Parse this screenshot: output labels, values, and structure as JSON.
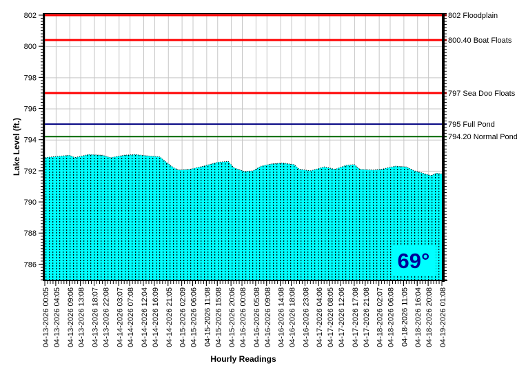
{
  "temperature_badge": {
    "text": "69°",
    "color": "#000099",
    "background": "#00FFFF"
  },
  "chart_data": {
    "type": "area",
    "title": "",
    "xlabel": "Hourly Readings",
    "ylabel": "Lake Level (ft.)",
    "ylim": [
      785,
      802
    ],
    "y_major_ticks": [
      786,
      788,
      790,
      792,
      794,
      796,
      798,
      800,
      802
    ],
    "y_minor_step": 0.2,
    "x_total_hours": 145,
    "x_minor_step_hours": 1,
    "grid": true,
    "grid_color": "#C6C6C6",
    "axis_color": "#000000",
    "x_tick_labels": [
      {
        "hour": 0,
        "label": "04-13-2026 00:05"
      },
      {
        "hour": 4,
        "label": "04-13-2026 04:05"
      },
      {
        "hour": 9,
        "label": "04-13-2026 09:06"
      },
      {
        "hour": 13,
        "label": "04-13-2026 13:08"
      },
      {
        "hour": 18,
        "label": "04-13-2026 18:07"
      },
      {
        "hour": 22,
        "label": "04-13-2026 22:08"
      },
      {
        "hour": 27,
        "label": "04-14-2026 03:07"
      },
      {
        "hour": 31,
        "label": "04-14-2026 07:08"
      },
      {
        "hour": 36,
        "label": "04-14-2026 12:04"
      },
      {
        "hour": 40,
        "label": "04-14-2026 16:09"
      },
      {
        "hour": 45,
        "label": "04-14-2026 21:05"
      },
      {
        "hour": 50,
        "label": "04-15-2026 02:09"
      },
      {
        "hour": 54,
        "label": "04-15-2026 06:06"
      },
      {
        "hour": 59,
        "label": "04-15-2026 11:08"
      },
      {
        "hour": 63,
        "label": "04-15-2026 15:08"
      },
      {
        "hour": 68,
        "label": "04-15-2026 20:06"
      },
      {
        "hour": 72,
        "label": "04-16-2026 00:08"
      },
      {
        "hour": 77,
        "label": "04-16-2026 05:08"
      },
      {
        "hour": 81,
        "label": "04-16-2026 09:08"
      },
      {
        "hour": 86,
        "label": "04-16-2026 14:08"
      },
      {
        "hour": 90,
        "label": "04-16-2026 18:08"
      },
      {
        "hour": 95,
        "label": "04-16-2026 23:08"
      },
      {
        "hour": 100,
        "label": "04-17-2026 04:06"
      },
      {
        "hour": 104,
        "label": "04-17-2026 08:05"
      },
      {
        "hour": 108,
        "label": "04-17-2026 12:06"
      },
      {
        "hour": 113,
        "label": "04-17-2026 17:08"
      },
      {
        "hour": 117,
        "label": "04-17-2026 21:08"
      },
      {
        "hour": 122,
        "label": "04-18-2026 02:07"
      },
      {
        "hour": 126,
        "label": "04-18-2026 06:08"
      },
      {
        "hour": 131,
        "label": "04-18-2026 11:05"
      },
      {
        "hour": 136,
        "label": "04-18-2026 16:04"
      },
      {
        "hour": 140,
        "label": "04-18-2026 20:08"
      },
      {
        "hour": 145,
        "label": "04-19-2026 01:08"
      }
    ],
    "series": {
      "name": "Lake Level",
      "fill_color": "#00FFFF",
      "pattern_dot_color": "#000000",
      "edge_color": "#000000",
      "points": [
        [
          0,
          792.85
        ],
        [
          3,
          792.9
        ],
        [
          9,
          793.0
        ],
        [
          11,
          792.85
        ],
        [
          16,
          793.05
        ],
        [
          21,
          793.0
        ],
        [
          24,
          792.85
        ],
        [
          29,
          793.0
        ],
        [
          33,
          793.05
        ],
        [
          38,
          792.95
        ],
        [
          42,
          792.9
        ],
        [
          44,
          792.6
        ],
        [
          47,
          792.2
        ],
        [
          49,
          792.05
        ],
        [
          53,
          792.1
        ],
        [
          58,
          792.3
        ],
        [
          63,
          792.55
        ],
        [
          67,
          792.6
        ],
        [
          69,
          792.2
        ],
        [
          73,
          791.95
        ],
        [
          76,
          792.0
        ],
        [
          79,
          792.3
        ],
        [
          83,
          792.45
        ],
        [
          87,
          792.5
        ],
        [
          91,
          792.4
        ],
        [
          93,
          792.1
        ],
        [
          97,
          792.0
        ],
        [
          102,
          792.25
        ],
        [
          106,
          792.1
        ],
        [
          110,
          792.35
        ],
        [
          113,
          792.4
        ],
        [
          115,
          792.1
        ],
        [
          120,
          792.05
        ],
        [
          123,
          792.1
        ],
        [
          128,
          792.3
        ],
        [
          132,
          792.25
        ],
        [
          135,
          792.0
        ],
        [
          138,
          791.85
        ],
        [
          141,
          791.7
        ],
        [
          143,
          791.85
        ],
        [
          145,
          791.8
        ]
      ]
    },
    "reference_lines": [
      {
        "value": 802,
        "label": "802 Floodplain",
        "color": "#FF0000",
        "width": 3
      },
      {
        "value": 800.4,
        "label": "800.40 Boat Floats",
        "color": "#FF0000",
        "width": 3
      },
      {
        "value": 797,
        "label": "797 Sea Doo Floats",
        "color": "#FF0000",
        "width": 3
      },
      {
        "value": 795,
        "label": "795 Full Pond",
        "color": "#000080",
        "width": 2
      },
      {
        "value": 794.2,
        "label": "794.20 Normal Pond",
        "color": "#006600",
        "width": 2
      }
    ]
  }
}
